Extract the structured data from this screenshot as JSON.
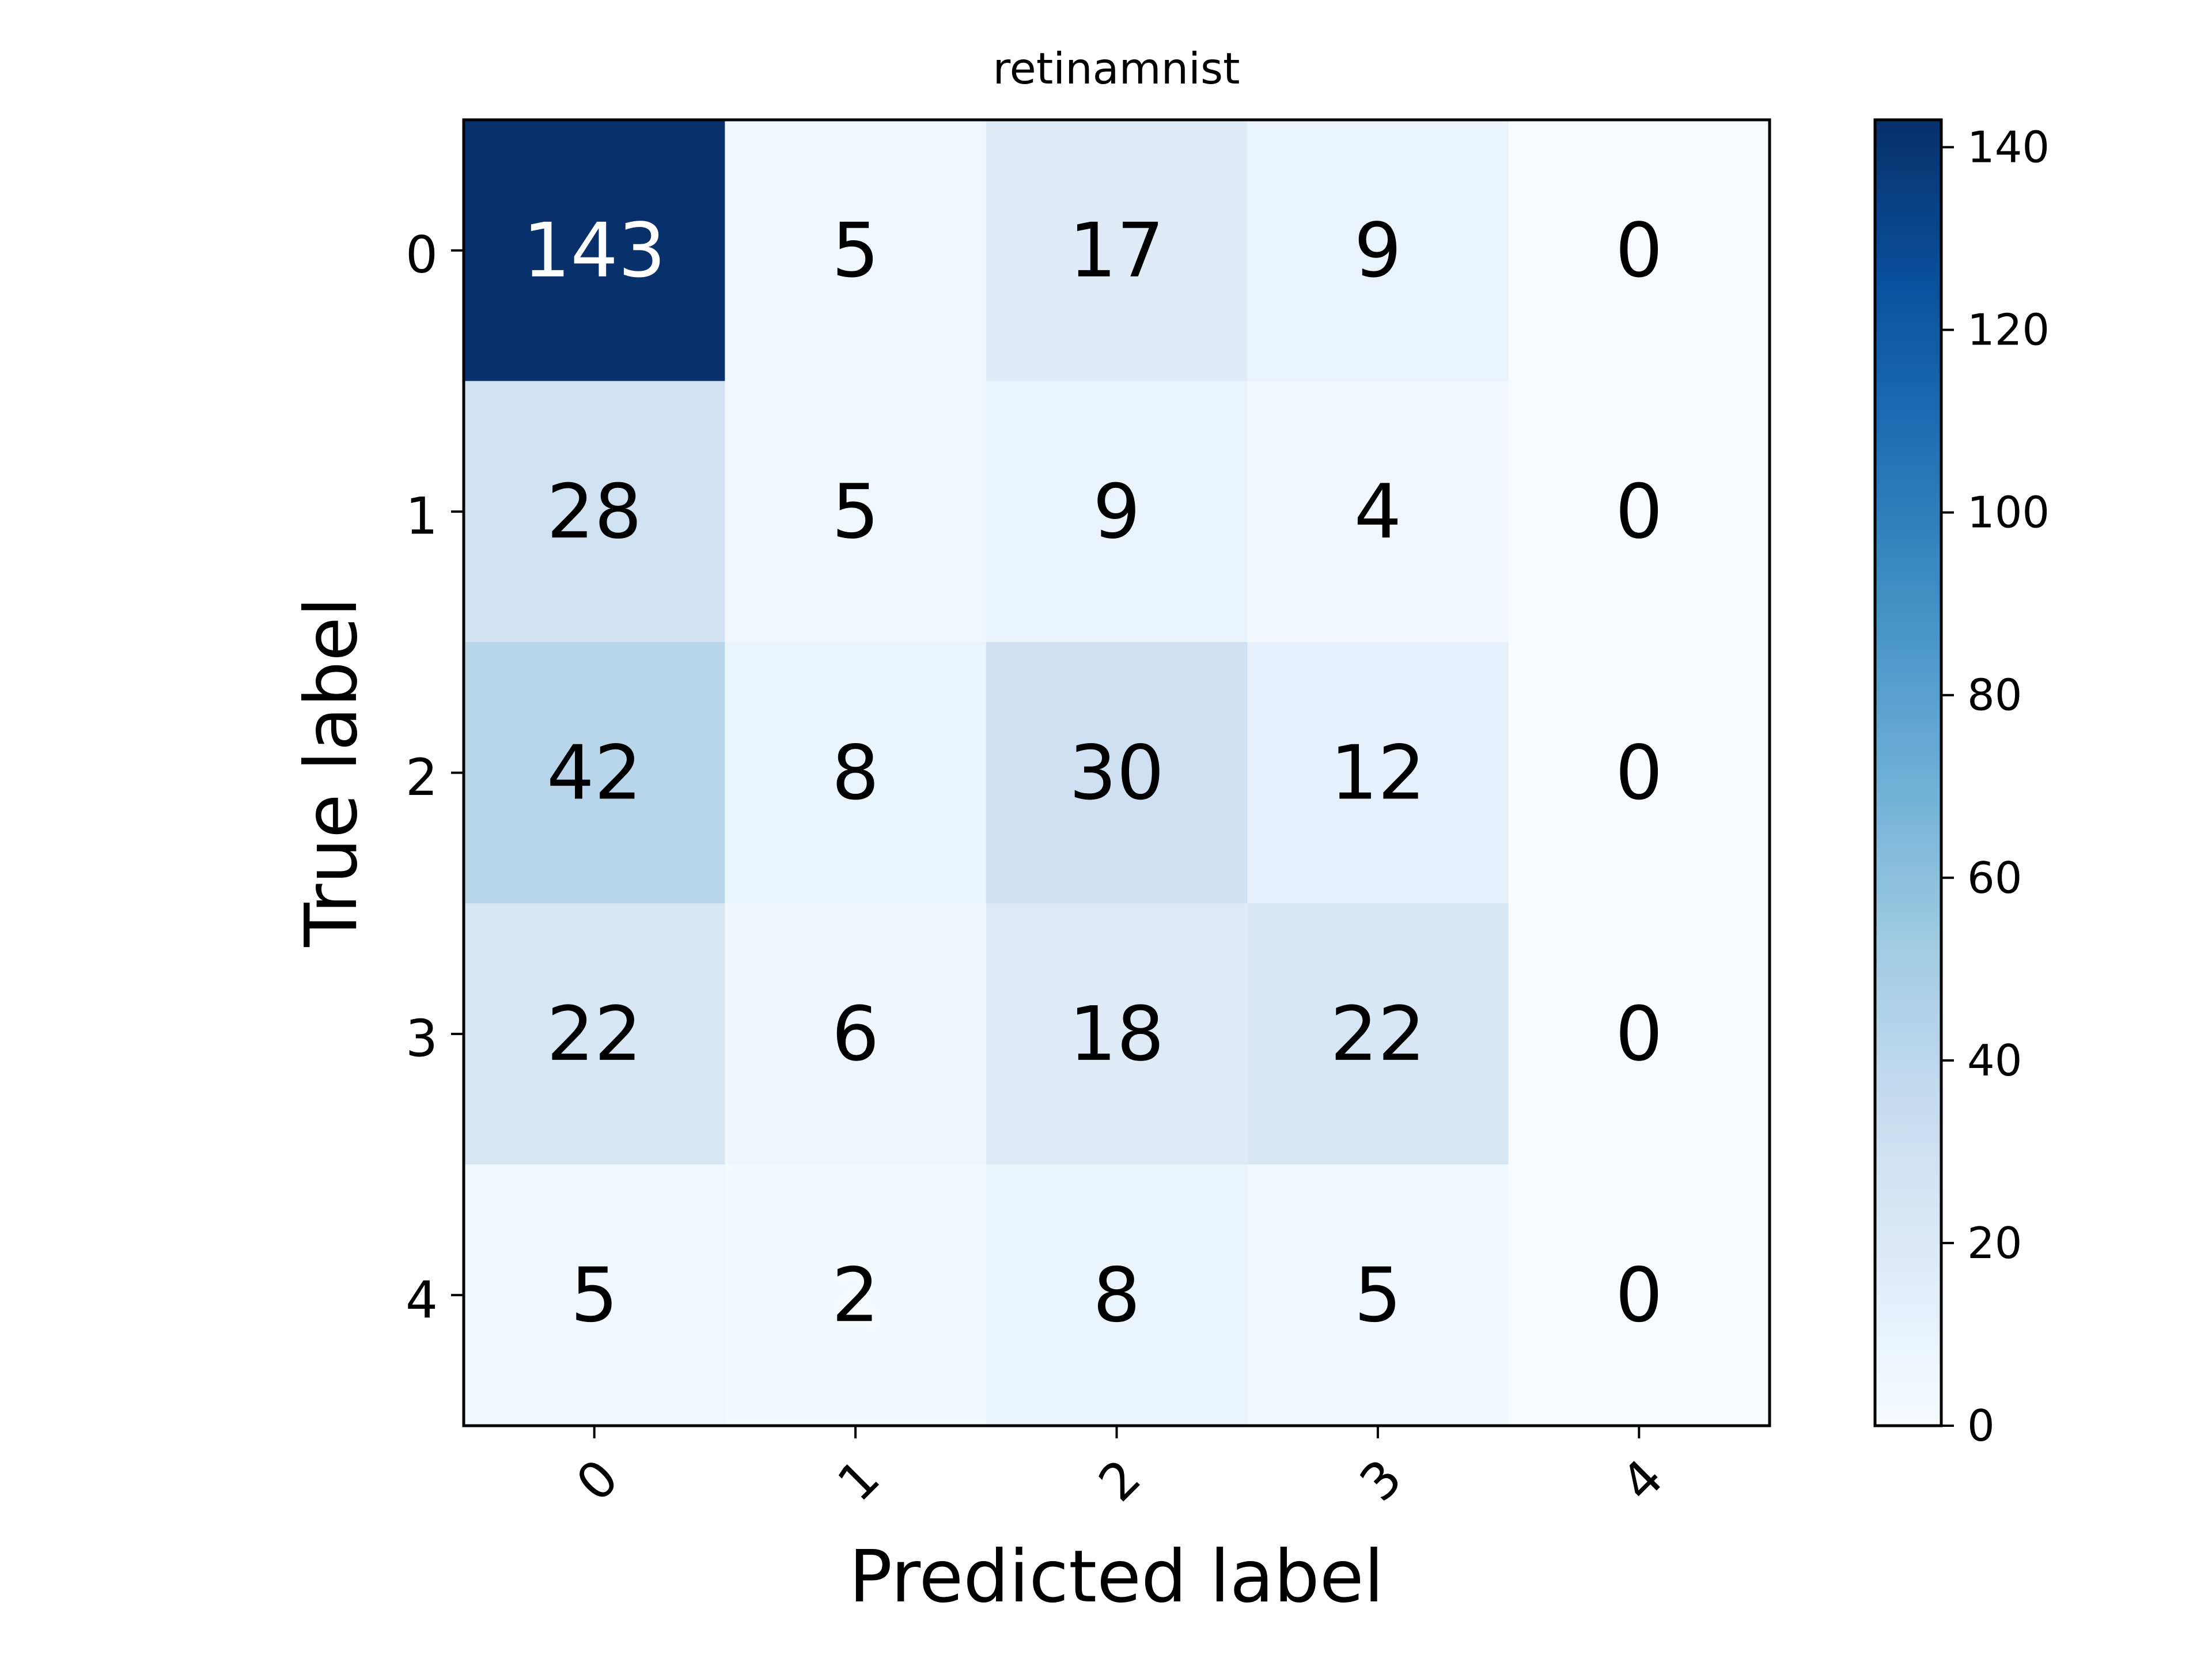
{
  "chart_data": {
    "type": "heatmap",
    "title": "retinamnist",
    "xlabel": "Predicted label",
    "ylabel": "True label",
    "x_ticks": [
      "0",
      "1",
      "2",
      "3",
      "4"
    ],
    "y_ticks": [
      "0",
      "1",
      "2",
      "3",
      "4"
    ],
    "matrix": [
      [
        143,
        5,
        17,
        9,
        0
      ],
      [
        28,
        5,
        9,
        4,
        0
      ],
      [
        42,
        8,
        30,
        12,
        0
      ],
      [
        22,
        6,
        18,
        22,
        0
      ],
      [
        5,
        2,
        8,
        5,
        0
      ]
    ],
    "colormap": "Blues",
    "colorbar": {
      "min": 0,
      "max": 143,
      "ticks": [
        0,
        20,
        40,
        60,
        80,
        100,
        120,
        140
      ]
    },
    "grid": false,
    "legend": "colorbar-right"
  }
}
